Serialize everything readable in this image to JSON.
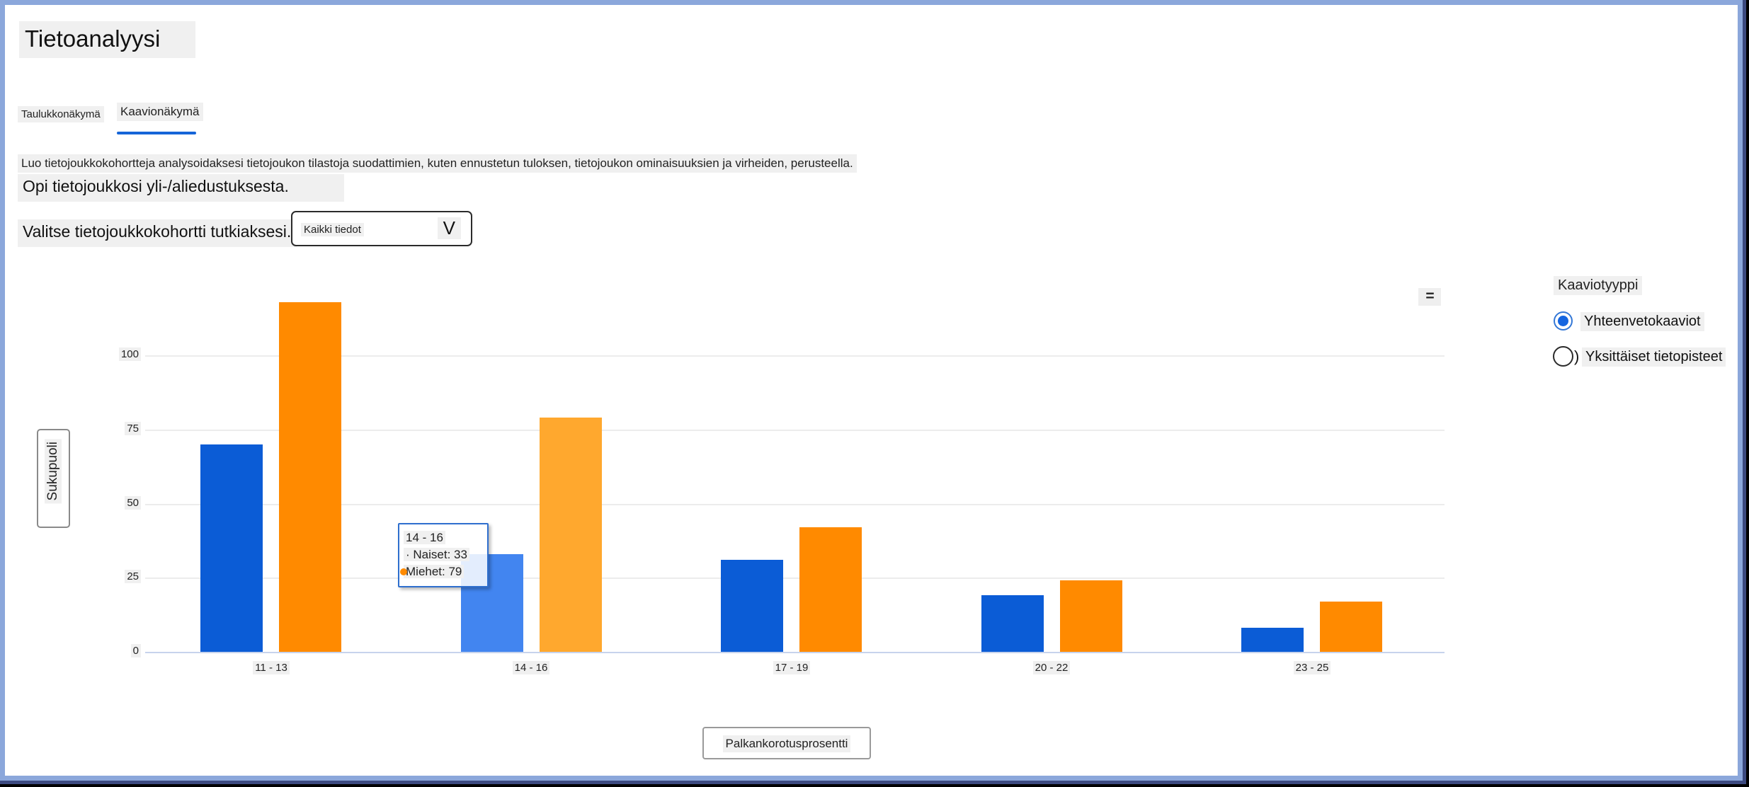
{
  "page": {
    "title": "Tietoanalyysi"
  },
  "tabs": [
    {
      "label": "Taulukkonäkymä",
      "active": false
    },
    {
      "label": "Kaavionäkymä",
      "active": true
    }
  ],
  "description": {
    "line1": "Luo tietojoukkokohortteja analysoidaksesi tietojoukon tilastoja suodattimien, kuten ennustetun tuloksen, tietojoukon ominaisuuksien ja virheiden, perusteella.",
    "line2": "Opi tietojoukkosi yli-/aliedustuksesta."
  },
  "cohort_picker": {
    "label": "Valitse tietojoukkokohortti tutkiaksesi.",
    "selected_value": "Kaikki tiedot",
    "chevron": "V"
  },
  "chart_controls": {
    "menu_icon": "=",
    "y_axis_button": "Sukupuoli",
    "x_axis_button": "Palkankorotusprosentti",
    "chart_type": {
      "label": "Kaaviotyyppi",
      "paren_artifact": ")",
      "options": [
        {
          "label": "Yhteenvetokaaviot",
          "selected": true
        },
        {
          "label": "Yksittäiset tietopisteet",
          "selected": false
        }
      ]
    }
  },
  "tooltip": {
    "title": "14 - 16",
    "row1": "· Naiset: 33",
    "row2": "Miehet: 79",
    "row2_dot_color": "#ff8a00"
  },
  "chart_data": {
    "type": "bar",
    "title": "",
    "categories": [
      "11 - 13",
      "14 - 16",
      "17 - 19",
      "20 - 22",
      "23 - 25"
    ],
    "series": [
      {
        "name": "Naiset",
        "color": "#0b5cd6",
        "hover_color": "#4285f0",
        "values": [
          70,
          33,
          31,
          19,
          8
        ]
      },
      {
        "name": "Miehet",
        "color": "#ff8a00",
        "hover_color": "#ffa82e",
        "values": [
          118,
          79,
          42,
          24,
          17
        ]
      }
    ],
    "hovered_category_index": 1,
    "y_ticks": [
      0,
      25,
      50,
      75,
      100
    ],
    "ylim": [
      0,
      120
    ],
    "xlabel": "Palkankorotusprosentti",
    "ylabel": "Sukupuoli",
    "grid": true,
    "legend": "none"
  },
  "colors": {
    "accent_blue": "#1565d8",
    "frame_blue": "#8ba7db",
    "highlight_gray": "#f0f0f0",
    "tooltip_border": "#2f6fce"
  }
}
